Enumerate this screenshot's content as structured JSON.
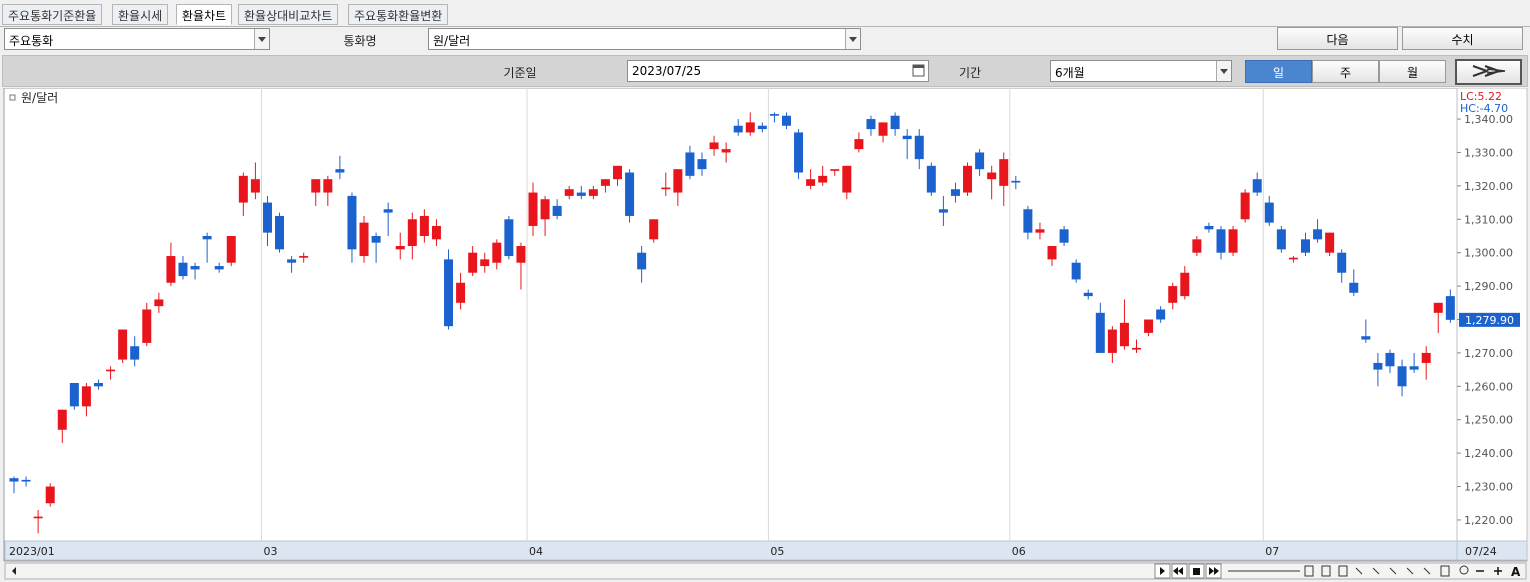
{
  "tabs": [
    "주요통화기준환율",
    "환율시세",
    "환율차트",
    "환율상대비교차트",
    "주요통화환율변환"
  ],
  "controls": {
    "group_select": "주요통화",
    "currency_label": "통화명",
    "currency_select": "원/달러",
    "next_button": "다음",
    "numbers_button": "수치",
    "date_label": "기준일",
    "date_input": "2023/07/25",
    "period_label": "기간",
    "period_select": "6개월",
    "interval_buttons": [
      "일",
      "주",
      "월"
    ]
  },
  "toolbar": {
    "font_button": "A"
  },
  "chart_data": {
    "type": "candlestick",
    "categories": [
      "2023/01",
      null,
      null,
      null,
      null,
      null,
      null,
      null,
      null,
      null,
      null,
      null,
      null,
      null,
      null,
      null,
      null,
      null,
      null,
      null,
      null,
      "03",
      null,
      null,
      null,
      null,
      null,
      null,
      null,
      null,
      null,
      null,
      null,
      null,
      null,
      null,
      null,
      null,
      null,
      null,
      null,
      null,
      null,
      "04",
      null,
      null,
      null,
      null,
      null,
      null,
      null,
      null,
      null,
      null,
      null,
      null,
      null,
      null,
      null,
      null,
      null,
      null,
      null,
      "05",
      null,
      null,
      null,
      null,
      null,
      null,
      null,
      null,
      null,
      null,
      null,
      null,
      null,
      null,
      null,
      null,
      null,
      null,
      null,
      "06",
      null,
      null,
      null,
      null,
      null,
      null,
      null,
      null,
      null,
      null,
      null,
      null,
      null,
      null,
      null,
      null,
      null,
      null,
      null,
      null,
      "07",
      null,
      null,
      null,
      null,
      null,
      null,
      null,
      null,
      null,
      null,
      null,
      null,
      null,
      null,
      null
    ],
    "last_date": "07/24",
    "series": [
      {
        "name": "원/달러",
        "open": [
          1232.5,
          1232,
          1220.5,
          1225,
          1247,
          1261,
          1254,
          1261,
          1264.5,
          1268,
          1272,
          1273,
          1284,
          1291,
          1297,
          1296,
          1305,
          1296,
          1297,
          1315,
          1318,
          1315,
          1311,
          1298,
          1298.5,
          1318,
          1318,
          1325,
          1317,
          1299,
          1305,
          1313,
          1301,
          1302,
          1305,
          1304,
          1298,
          1285,
          1294,
          1296,
          1297,
          1310,
          1297,
          1308,
          1310,
          1314,
          1317,
          1318,
          1317,
          1320,
          1322,
          1324,
          1300,
          1304,
          1319,
          1318,
          1330,
          1328,
          1331,
          1330,
          1338,
          1336,
          1338,
          1341.5,
          1341,
          1336,
          1320,
          1321,
          1324.5,
          1318,
          1331,
          1340,
          1335,
          1341,
          1335,
          1335,
          1326,
          1313,
          1319,
          1318,
          1330,
          1322,
          1320,
          1321.5,
          1313,
          1306,
          1298,
          1307,
          1297,
          1288,
          1282,
          1270,
          1272,
          1271,
          1276,
          1283,
          1285,
          1287,
          1300,
          1308,
          1307,
          1300,
          1310,
          1322,
          1315,
          1307,
          1298,
          1304,
          1307,
          1300,
          1300,
          1291,
          1275,
          1267,
          1270,
          1266,
          1266,
          1267,
          1282,
          1287
        ],
        "high": [
          1233,
          1233,
          1223,
          1231,
          1253,
          1261,
          1261,
          1262,
          1266,
          1277,
          1275,
          1285,
          1288,
          1303,
          1299,
          1297,
          1306,
          1297,
          1305,
          1324,
          1327,
          1317,
          1312,
          1299,
          1300,
          1322,
          1323,
          1329,
          1318,
          1311,
          1306,
          1315,
          1306,
          1312,
          1313,
          1310,
          1301,
          1294,
          1302,
          1300,
          1304,
          1311,
          1303,
          1321,
          1317,
          1316,
          1320,
          1320,
          1320,
          1322,
          1326,
          1325,
          1302,
          1310,
          1324,
          1325,
          1332,
          1330,
          1335,
          1333,
          1340,
          1342,
          1339,
          1342,
          1342,
          1337,
          1325,
          1326,
          1325,
          1326,
          1336,
          1341,
          1339,
          1342,
          1337,
          1337,
          1327,
          1317,
          1321,
          1327,
          1331,
          1326,
          1330,
          1323,
          1314,
          1309,
          1302,
          1308,
          1298,
          1289,
          1285,
          1278,
          1286,
          1274,
          1280,
          1284,
          1291,
          1296,
          1305,
          1309,
          1308,
          1308,
          1319,
          1324,
          1317,
          1308,
          1299,
          1306,
          1310,
          1306,
          1301,
          1295,
          1280,
          1270,
          1271,
          1268,
          1270,
          1272,
          1285,
          1289
        ],
        "low": [
          1228,
          1230,
          1216,
          1224,
          1243,
          1253,
          1251,
          1259,
          1262,
          1267,
          1266,
          1272,
          1282,
          1290,
          1292,
          1292,
          1297,
          1294,
          1296,
          1311,
          1316,
          1302,
          1300,
          1294,
          1297,
          1314,
          1314,
          1322,
          1297,
          1297,
          1297,
          1305,
          1298,
          1298,
          1303,
          1302,
          1277,
          1283,
          1293,
          1294,
          1295,
          1298,
          1289,
          1305,
          1305,
          1310,
          1316,
          1316,
          1316,
          1318,
          1320,
          1309,
          1291,
          1303,
          1317,
          1314,
          1322,
          1323,
          1329,
          1327,
          1335,
          1335,
          1336,
          1339,
          1337,
          1322,
          1319,
          1320,
          1323,
          1316,
          1330,
          1335,
          1333,
          1335,
          1328,
          1325,
          1317,
          1308,
          1315,
          1317,
          1323,
          1316,
          1314,
          1319,
          1304,
          1304,
          1296,
          1302,
          1291,
          1286,
          1270,
          1267,
          1271,
          1270,
          1275,
          1279,
          1283,
          1286,
          1299,
          1306,
          1298,
          1299,
          1309,
          1317,
          1308,
          1300,
          1297,
          1299,
          1303,
          1299,
          1291,
          1287,
          1273,
          1260,
          1264,
          1257,
          1264,
          1262,
          1276,
          1279
        ],
        "close": [
          1231.5,
          1231.5,
          1221,
          1230,
          1253,
          1254,
          1260,
          1260,
          1265,
          1277,
          1268,
          1283,
          1286,
          1299,
          1293,
          1295,
          1304,
          1295,
          1305,
          1323,
          1322,
          1306,
          1301,
          1297,
          1299,
          1322,
          1322,
          1324,
          1301,
          1309,
          1303,
          1312,
          1302,
          1310,
          1311,
          1308,
          1278,
          1291,
          1300,
          1298,
          1303,
          1299,
          1302,
          1318,
          1316,
          1311,
          1319,
          1317,
          1319,
          1322,
          1326,
          1311,
          1295,
          1310,
          1319.5,
          1325,
          1323,
          1325,
          1333,
          1331,
          1336,
          1339,
          1337,
          1341,
          1338,
          1324,
          1322,
          1323,
          1325,
          1326,
          1334,
          1337,
          1339,
          1337,
          1334,
          1328,
          1318,
          1312,
          1317,
          1326,
          1325,
          1324,
          1328,
          1321,
          1306,
          1307,
          1302,
          1303,
          1292,
          1287,
          1270,
          1277,
          1279,
          1271.5,
          1280,
          1280,
          1290,
          1294,
          1304,
          1307,
          1300,
          1307,
          1318,
          1318,
          1309,
          1301,
          1298.5,
          1300,
          1304,
          1306,
          1294,
          1288,
          1274,
          1265,
          1266,
          1260,
          1265,
          1270,
          1285,
          1279.9
        ]
      }
    ],
    "up_color": "#e8161c",
    "down_color": "#1b62cf",
    "ylim": [
      1213.7,
      1347.8
    ],
    "yticks": [
      {
        "value": 1220,
        "label": "1,220.00"
      },
      {
        "value": 1230,
        "label": "1,230.00"
      },
      {
        "value": 1240,
        "label": "1,240.00"
      },
      {
        "value": 1250,
        "label": "1,250.00"
      },
      {
        "value": 1260,
        "label": "1,260.00"
      },
      {
        "value": 1270,
        "label": "1,270.00"
      },
      {
        "value": 1280,
        "label": "1,280.00"
      },
      {
        "value": 1290,
        "label": "1,290.00"
      },
      {
        "value": 1300,
        "label": "1,300.00"
      },
      {
        "value": 1310,
        "label": "1,310.00"
      },
      {
        "value": 1320,
        "label": "1,320.00"
      },
      {
        "value": 1330,
        "label": "1,330.00"
      },
      {
        "value": 1340,
        "label": "1,340.00"
      }
    ],
    "last_label": {
      "value": 1279.9,
      "label": "1,279.90"
    },
    "annotations": [
      "LC:5.22",
      "HC:-4.70"
    ]
  }
}
